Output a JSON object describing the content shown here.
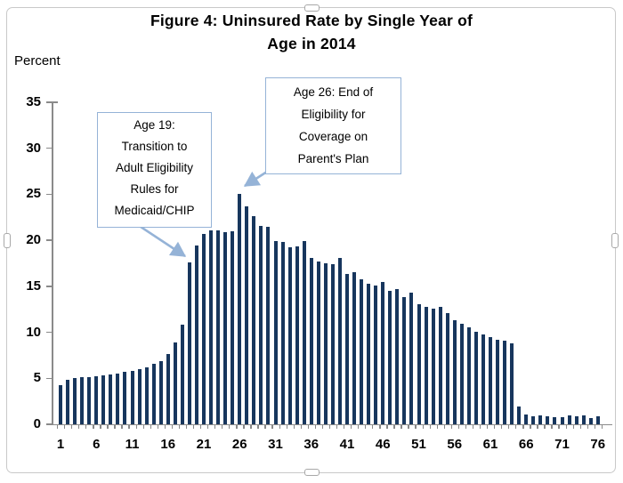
{
  "figure": {
    "title_line1": "Figure 4: Uninsured Rate by Single Year of",
    "title_line2": "Age in 2014",
    "y_axis_label": "Percent"
  },
  "annotations": {
    "age19": {
      "lines": [
        "Age 19:",
        "Transition to",
        "Adult Eligibility",
        "Rules for",
        "Medicaid/CHIP"
      ]
    },
    "age26": {
      "lines": [
        "Age 26: End of",
        "Eligibility for",
        "Coverage on",
        "Parent's Plan"
      ]
    }
  },
  "colors": {
    "bar": "#17365d",
    "callout_border": "#95b3d7",
    "arrow": "#95b3d7",
    "axis": "#8a8a8a",
    "text": "#000000"
  },
  "chart_data": {
    "type": "bar",
    "title": "Figure 4: Uninsured Rate by Single Year of Age in 2014",
    "xlabel": "",
    "ylabel": "Percent",
    "ylim": [
      0,
      35
    ],
    "grid": false,
    "legend": "none",
    "y_ticks": [
      0,
      5,
      10,
      15,
      20,
      25,
      30,
      35
    ],
    "x_tick_labels": [
      1,
      6,
      11,
      16,
      21,
      26,
      31,
      36,
      41,
      46,
      51,
      56,
      61,
      66,
      71,
      76
    ],
    "ages": [
      1,
      2,
      3,
      4,
      5,
      6,
      7,
      8,
      9,
      10,
      11,
      12,
      13,
      14,
      15,
      16,
      17,
      18,
      19,
      20,
      21,
      22,
      23,
      24,
      25,
      26,
      27,
      28,
      29,
      30,
      31,
      32,
      33,
      34,
      35,
      36,
      37,
      38,
      39,
      40,
      41,
      42,
      43,
      44,
      45,
      46,
      47,
      48,
      49,
      50,
      51,
      52,
      53,
      54,
      55,
      56,
      57,
      58,
      59,
      60,
      61,
      62,
      63,
      64,
      65,
      66,
      67,
      68,
      69,
      70,
      71,
      72,
      73,
      74,
      75,
      76
    ],
    "values": [
      4.3,
      4.8,
      5.0,
      5.1,
      5.1,
      5.2,
      5.3,
      5.4,
      5.5,
      5.7,
      5.8,
      6.0,
      6.2,
      6.6,
      6.9,
      7.6,
      8.9,
      10.8,
      17.6,
      19.4,
      20.7,
      21.1,
      21.1,
      20.9,
      21.0,
      25.0,
      23.7,
      22.6,
      21.6,
      21.5,
      19.9,
      19.8,
      19.2,
      19.3,
      19.9,
      18.1,
      17.7,
      17.5,
      17.4,
      18.1,
      16.3,
      16.5,
      15.8,
      15.3,
      15.1,
      15.5,
      14.5,
      14.7,
      13.8,
      14.3,
      13.1,
      12.8,
      12.6,
      12.8,
      12.1,
      11.3,
      10.9,
      10.5,
      10.1,
      9.8,
      9.5,
      9.2,
      9.1,
      8.8,
      1.9,
      1.1,
      0.9,
      1.0,
      0.9,
      0.8,
      0.8,
      1.0,
      0.9,
      1.0,
      0.7,
      0.9
    ],
    "annotation_targets": {
      "age19_value": 17.6,
      "age26_value": 25.0
    }
  }
}
